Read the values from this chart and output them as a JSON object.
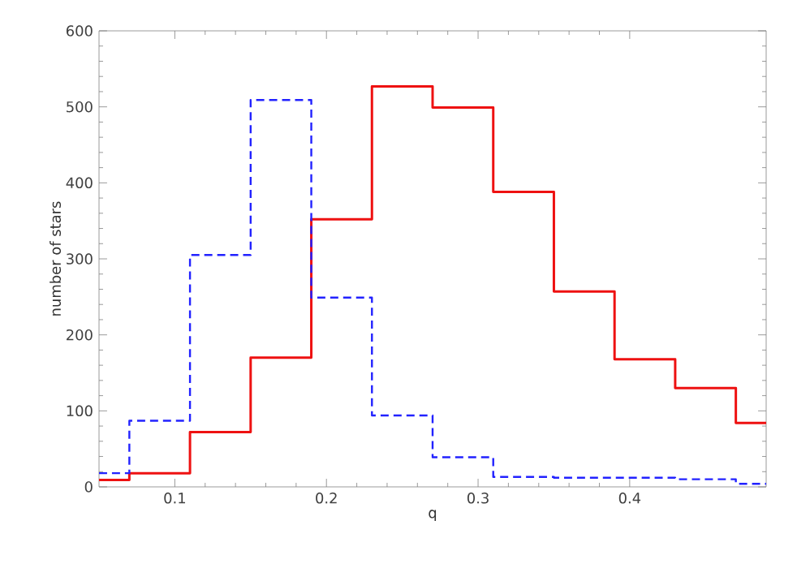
{
  "chart_data": {
    "type": "histogram",
    "xlabel": "q",
    "ylabel": "number of stars",
    "bins": [
      0.05,
      0.07,
      0.11,
      0.15,
      0.19,
      0.23,
      0.27,
      0.31,
      0.35,
      0.39,
      0.43,
      0.47,
      0.49
    ],
    "series": [
      {
        "color": "#ee1111",
        "line_style": "solid",
        "values": [
          9,
          18,
          72,
          170,
          352,
          527,
          499,
          388,
          257,
          168,
          130,
          84
        ]
      },
      {
        "color": "#2222ff",
        "line_style": "dashed",
        "values": [
          18,
          87,
          305,
          509,
          249,
          94,
          39,
          13,
          12,
          12,
          10,
          4
        ]
      }
    ],
    "xlim": [
      0.05,
      0.49
    ],
    "ylim": [
      0,
      600
    ],
    "xticks": [
      0.1,
      0.2,
      0.3,
      0.4
    ],
    "yticks": [
      0,
      100,
      200,
      300,
      400,
      500,
      600
    ],
    "grid": false
  }
}
